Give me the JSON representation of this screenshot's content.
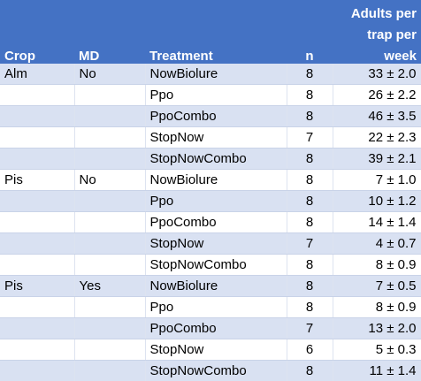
{
  "header": {
    "crop": "Crop",
    "md": "MD",
    "treatment": "Treatment",
    "n": "n",
    "value_line1": "Adults per",
    "value_line2": "trap per",
    "value_line3": "week"
  },
  "rows": [
    {
      "crop": "Alm",
      "md": "No",
      "treatment": "NowBiolure",
      "n": "8",
      "value": "33 ± 2.0"
    },
    {
      "crop": "",
      "md": "",
      "treatment": "Ppo",
      "n": "8",
      "value": "26 ± 2.2"
    },
    {
      "crop": "",
      "md": "",
      "treatment": "PpoCombo",
      "n": "8",
      "value": "46 ± 3.5"
    },
    {
      "crop": "",
      "md": "",
      "treatment": "StopNow",
      "n": "7",
      "value": "22 ± 2.3"
    },
    {
      "crop": "",
      "md": "",
      "treatment": "StopNowCombo",
      "n": "8",
      "value": "39 ± 2.1"
    },
    {
      "crop": "Pis",
      "md": "No",
      "treatment": "NowBiolure",
      "n": "8",
      "value": "7 ± 1.0"
    },
    {
      "crop": "",
      "md": "",
      "treatment": "Ppo",
      "n": "8",
      "value": "10 ± 1.2"
    },
    {
      "crop": "",
      "md": "",
      "treatment": "PpoCombo",
      "n": "8",
      "value": "14 ± 1.4"
    },
    {
      "crop": "",
      "md": "",
      "treatment": "StopNow",
      "n": "7",
      "value": "4 ± 0.7"
    },
    {
      "crop": "",
      "md": "",
      "treatment": "StopNowCombo",
      "n": "8",
      "value": "8 ± 0.9"
    },
    {
      "crop": "Pis",
      "md": "Yes",
      "treatment": "NowBiolure",
      "n": "8",
      "value": "7 ± 0.5"
    },
    {
      "crop": "",
      "md": "",
      "treatment": "Ppo",
      "n": "8",
      "value": "8 ± 0.9"
    },
    {
      "crop": "",
      "md": "",
      "treatment": "PpoCombo",
      "n": "7",
      "value": "13 ± 2.0"
    },
    {
      "crop": "",
      "md": "",
      "treatment": "StopNow",
      "n": "6",
      "value": "5 ± 0.3"
    },
    {
      "crop": "",
      "md": "",
      "treatment": "StopNowCombo",
      "n": "8",
      "value": "11 ± 1.4"
    }
  ],
  "colors": {
    "header_bg": "#4472c4",
    "header_text": "#ffffff",
    "band_bg": "#d9e1f2",
    "plain_bg": "#ffffff"
  }
}
